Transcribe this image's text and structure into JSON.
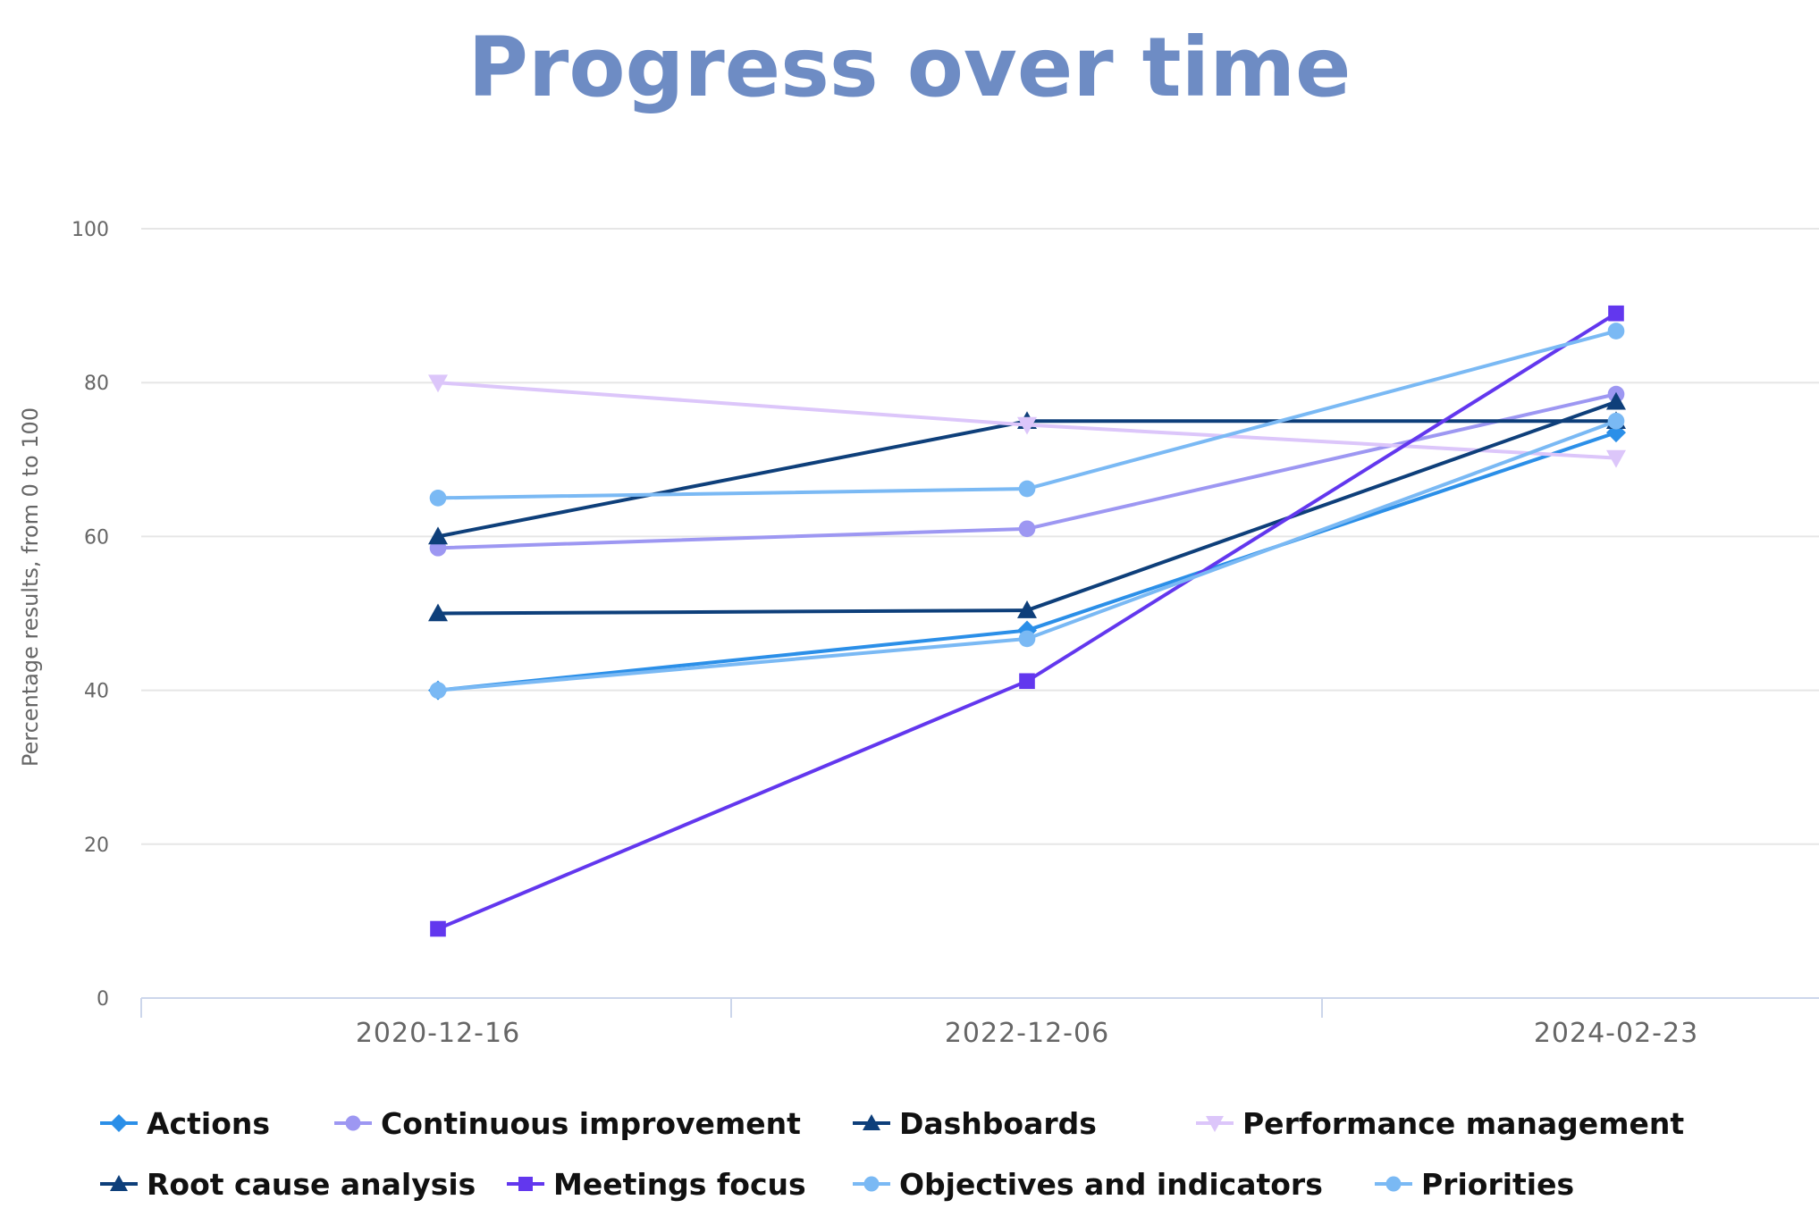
{
  "chart_data": {
    "type": "line",
    "title": "Progress over time",
    "xlabel": "",
    "ylabel": "Percentage results, from 0 to 100",
    "categories": [
      "2020-12-16",
      "2022-12-06",
      "2024-02-23"
    ],
    "ylim": [
      0,
      100
    ],
    "yticks": [
      0,
      20,
      40,
      60,
      80,
      100
    ],
    "grid": true,
    "legend_position": "bottom",
    "series": [
      {
        "name": "Actions",
        "values": [
          40,
          47.8,
          73.5
        ],
        "color": "#2B8FE8",
        "marker": "diamond"
      },
      {
        "name": "Continuous improvement",
        "values": [
          58.5,
          61,
          78.5
        ],
        "color": "#9D97F2",
        "marker": "circle"
      },
      {
        "name": "Dashboards",
        "values": [
          60,
          75,
          75
        ],
        "color": "#0E3F7A",
        "marker": "triangle"
      },
      {
        "name": "Performance management",
        "values": [
          80,
          74.5,
          70.2
        ],
        "color": "#DCC6FA",
        "marker": "triangle-down"
      },
      {
        "name": "Root cause analysis",
        "values": [
          50,
          50.4,
          77.5
        ],
        "color": "#0E3F7A",
        "marker": "triangle"
      },
      {
        "name": "Meetings focus",
        "values": [
          9,
          41.2,
          89
        ],
        "color": "#6237EE",
        "marker": "square"
      },
      {
        "name": "Objectives and indicators",
        "values": [
          65,
          66.2,
          86.7
        ],
        "color": "#7AB9F4",
        "marker": "circle"
      },
      {
        "name": "Priorities",
        "values": [
          40,
          46.7,
          75
        ],
        "color": "#7AB9F4",
        "marker": "circle"
      }
    ]
  }
}
